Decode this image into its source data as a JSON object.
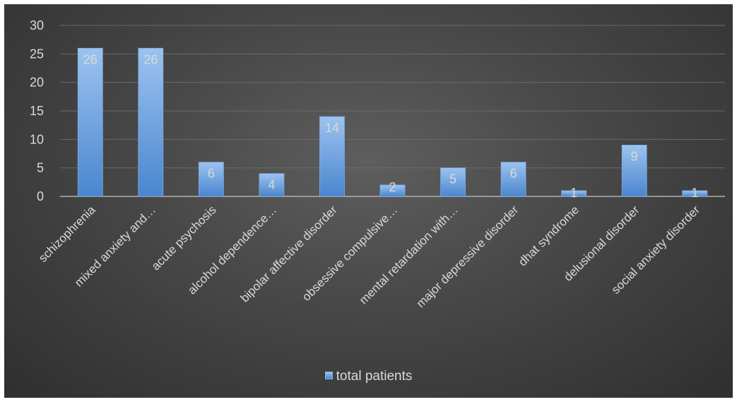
{
  "chart_data": {
    "type": "bar",
    "categories": [
      "schizophrenia",
      "mixed anxiety and…",
      "acute psychosis",
      "alcohol dependence…",
      "bipolar affective disorder",
      "obsessive compulsive…",
      "mental retardation with…",
      "major depressive disorder",
      "dhat syndrome",
      "delusional disorder",
      "social anxiety disorder"
    ],
    "series": [
      {
        "name": "total patients",
        "values": [
          26,
          26,
          6,
          4,
          14,
          2,
          5,
          6,
          1,
          9,
          1
        ]
      }
    ],
    "title": "",
    "xlabel": "",
    "ylabel": "",
    "ylim": [
      0,
      30
    ],
    "yticks": [
      0,
      5,
      10,
      15,
      20,
      25,
      30
    ],
    "grid": true,
    "data_labels": true,
    "legend_position": "bottom",
    "colors": {
      "bar_top": "#9cc3ef",
      "bar_bottom": "#4a86cf",
      "grid": "#6a6a6a",
      "axis": "#b0b0b0"
    }
  }
}
